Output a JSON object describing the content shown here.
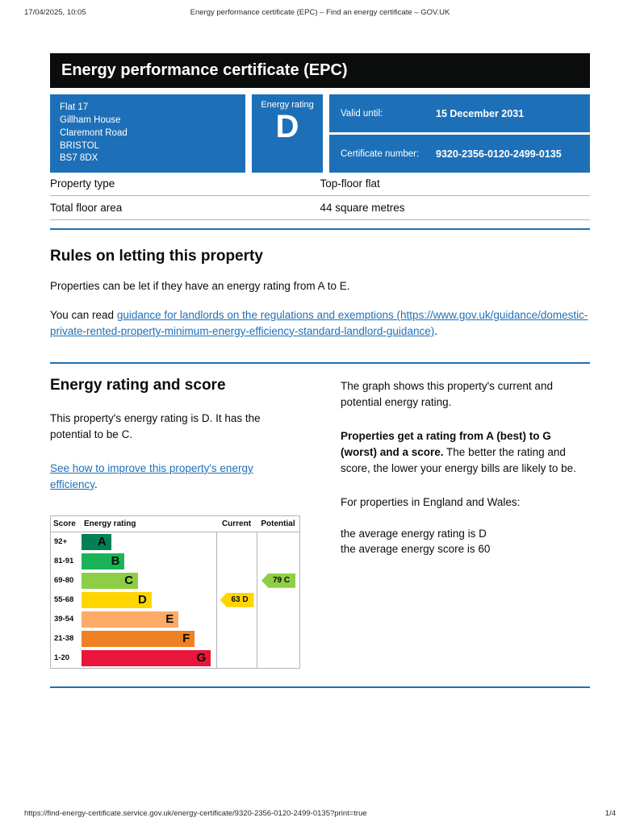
{
  "print_header": {
    "datetime": "17/04/2025, 10:05",
    "title": "Energy performance certificate (EPC) – Find an energy certificate – GOV.UK"
  },
  "banner": {
    "title": "Energy performance certificate (EPC)"
  },
  "summary": {
    "address_lines": [
      "Flat 17",
      "Gillham House",
      "Claremont Road",
      "BRISTOL",
      "BS7 8DX"
    ],
    "energy_rating_label": "Energy rating",
    "energy_rating_value": "D",
    "valid_until_label": "Valid until:",
    "valid_until_value": "15 December 2031",
    "certificate_number_label": "Certificate number:",
    "certificate_number_value": "9320-2356-0120-2499-0135"
  },
  "property_details": {
    "rows": [
      {
        "label": "Property type",
        "value": "Top-floor flat"
      },
      {
        "label": "Total floor area",
        "value": "44 square metres"
      }
    ]
  },
  "rules_section": {
    "heading": "Rules on letting this property",
    "paragraph1": "Properties can be let if they have an energy rating from A to E.",
    "paragraph2_prefix": "You can read ",
    "link_text": "guidance for landlords on the regulations and exemptions (https://www.gov.uk/guidance/domestic-private-rented-property-minimum-energy-efficiency-standard-landlord-guidance)",
    "paragraph2_suffix": "."
  },
  "rating_section": {
    "heading": "Energy rating and score",
    "paragraph1": "This property's energy rating is D. It has the potential to be C.",
    "link_text": "See how to improve this property's energy efficiency",
    "link_suffix": "."
  },
  "explanation": {
    "paragraph1": "The graph shows this property's current and potential energy rating.",
    "paragraph2_bold": "Properties get a rating from A (best) to G (worst) and a score.",
    "paragraph2_rest": " The better the rating and score, the lower your energy bills are likely to be.",
    "paragraph3": "For properties in England and Wales:",
    "average_rating_line": "the average energy rating is D",
    "average_score_line": "the average energy score is 60"
  },
  "chart_data": {
    "type": "epc-bands",
    "headers": {
      "score": "Score",
      "rating": "Energy rating",
      "current": "Current",
      "potential": "Potential"
    },
    "bands": [
      {
        "score": "92+",
        "letter": "A",
        "color": "#008054",
        "width_pct": 22
      },
      {
        "score": "81-91",
        "letter": "B",
        "color": "#19b459",
        "width_pct": 32
      },
      {
        "score": "69-80",
        "letter": "C",
        "color": "#8dce46",
        "width_pct": 42
      },
      {
        "score": "55-68",
        "letter": "D",
        "color": "#ffd500",
        "width_pct": 52
      },
      {
        "score": "39-54",
        "letter": "E",
        "color": "#fcaa65",
        "width_pct": 72
      },
      {
        "score": "21-38",
        "letter": "F",
        "color": "#ef8023",
        "width_pct": 84
      },
      {
        "score": "1-20",
        "letter": "G",
        "color": "#e9153b",
        "width_pct": 96
      }
    ],
    "current": {
      "score": 63,
      "letter": "D",
      "band_index": 3,
      "color": "#ffd500",
      "label": "63  D"
    },
    "potential": {
      "score": 79,
      "letter": "C",
      "band_index": 2,
      "color": "#8dce46",
      "label": "79  C"
    }
  },
  "print_footer": {
    "url": "https://find-energy-certificate.service.gov.uk/energy-certificate/9320-2356-0120-2499-0135?print=true",
    "page": "1/4"
  },
  "colors": {
    "govuk_blue": "#1d70b8",
    "banner_black": "#0b0c0c"
  }
}
